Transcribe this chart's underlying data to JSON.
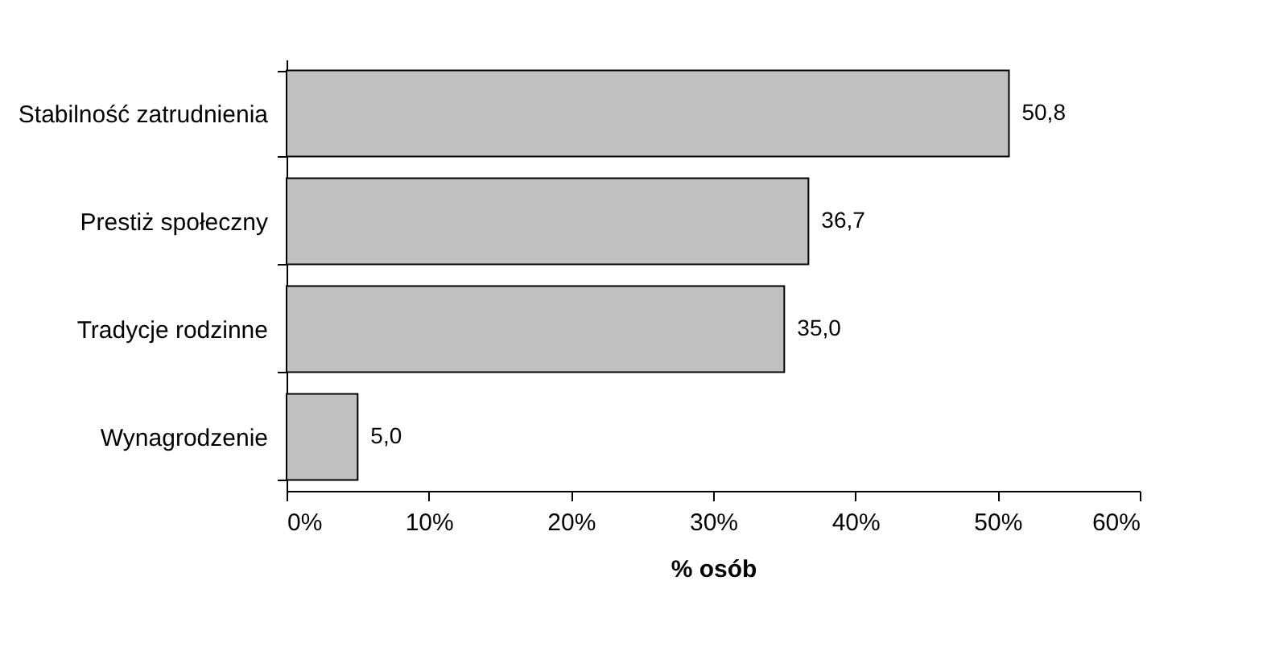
{
  "chart_data": {
    "type": "bar",
    "orientation": "horizontal",
    "categories": [
      "Stabilność zatrudnienia",
      "Prestiż społeczny",
      "Tradycje rodzinne",
      "Wynagrodzenie"
    ],
    "values": [
      50.8,
      36.7,
      35.0,
      5.0
    ],
    "value_labels": [
      "50,8",
      "36,7",
      "35,0",
      "5,0"
    ],
    "color": "#c0c0c0",
    "xlabel": "% osób",
    "xlim": [
      0,
      60
    ],
    "xticks": [
      {
        "value": 0,
        "label": "0%"
      },
      {
        "value": 10,
        "label": "10%"
      },
      {
        "value": 20,
        "label": "20%"
      },
      {
        "value": 30,
        "label": "30%"
      },
      {
        "value": 40,
        "label": "40%"
      },
      {
        "value": 50,
        "label": "50%"
      },
      {
        "value": 60,
        "label": "60%"
      }
    ],
    "grid": false
  }
}
